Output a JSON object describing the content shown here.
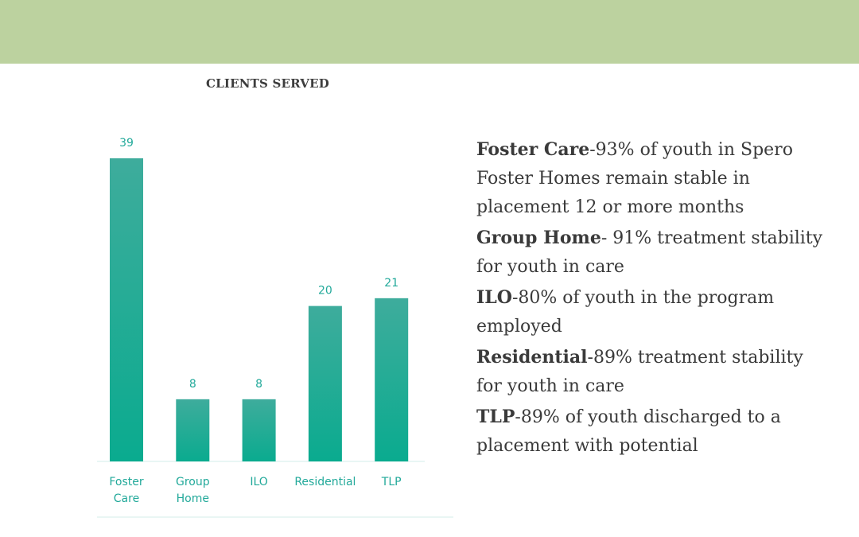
{
  "banner": {
    "color": "#bcd29f"
  },
  "chart_data": {
    "type": "bar",
    "title": "CLIENTS SERVED",
    "categories": [
      [
        "Foster",
        "Care"
      ],
      [
        "Group",
        "Home"
      ],
      [
        "ILO"
      ],
      [
        "Residential"
      ],
      [
        "TLP"
      ]
    ],
    "values": [
      39,
      8,
      8,
      20,
      21
    ],
    "ylim": [
      0,
      39
    ],
    "grid": false,
    "legend": "none",
    "bar_color_top": "#3eac9c",
    "bar_color_bottom": "#0aab8f",
    "label_color": "#22a99a"
  },
  "notes": [
    {
      "title": "Foster Care",
      "text": "-93% of youth in Spero Foster Homes remain stable in placement 12 or more months"
    },
    {
      "title": "Group Home",
      "text": "- 91% treatment stability for youth in care"
    },
    {
      "title": "ILO",
      "text": "-80% of youth in the program employed"
    },
    {
      "title": "Residential",
      "text": "-89% treatment stability for youth in care"
    },
    {
      "title": "TLP",
      "text": "-89% of youth discharged to a placement with potential"
    }
  ]
}
